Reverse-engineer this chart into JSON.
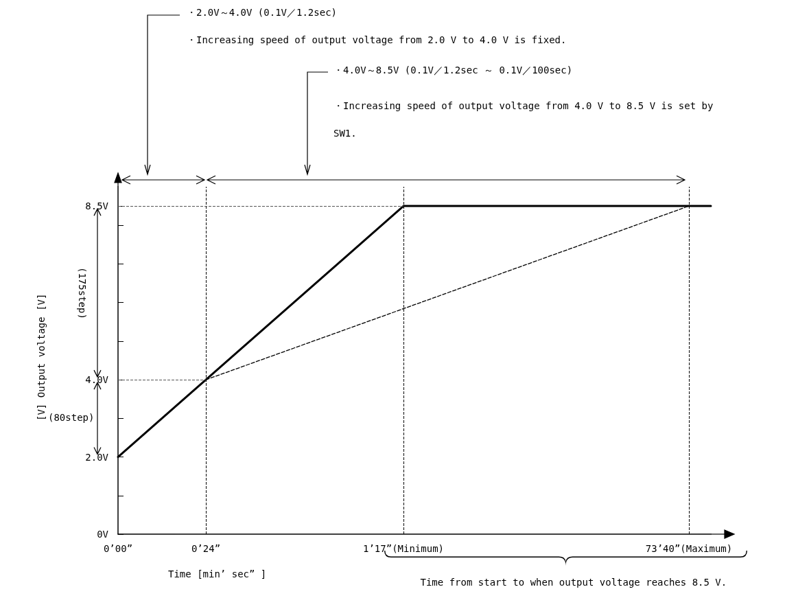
{
  "chart_data": {
    "type": "line",
    "xlabel": "Time [min’ sec” ]",
    "ylabel": "[V] Output voltage [V]",
    "categories": [
      "0’00”",
      null,
      null,
      null,
      "0’24”",
      null,
      null,
      null,
      null,
      null,
      null,
      null,
      null,
      "1’17”(Minimum)",
      null,
      null,
      null,
      null,
      null,
      null,
      null,
      null,
      null,
      null,
      null,
      null,
      "73’40”(Maximum)",
      null
    ],
    "series": [
      {
        "color": "#000000",
        "line_style": "solid",
        "values": [
          2.0,
          null,
          null,
          null,
          4.0,
          null,
          null,
          null,
          null,
          null,
          null,
          null,
          null,
          8.5,
          null,
          null,
          null,
          null,
          null,
          null,
          null,
          null,
          null,
          null,
          null,
          null,
          8.5,
          8.5
        ]
      },
      {
        "color": "#000000",
        "line_style": "dashed",
        "x": [
          "0’24”",
          "73’40”(Maximum)"
        ],
        "values": [
          4.0,
          8.5
        ]
      }
    ],
    "ylim": [
      0,
      9
    ],
    "yticks": [
      {
        "value": 0,
        "label": "0V"
      },
      {
        "value": 1,
        "label": null
      },
      {
        "value": 2,
        "label": "2.0V"
      },
      {
        "value": 3,
        "label": null
      },
      {
        "value": 4,
        "label": "4.0V"
      },
      {
        "value": 5,
        "label": null
      },
      {
        "value": 6,
        "label": null
      },
      {
        "value": 7,
        "label": null
      },
      {
        "value": 8,
        "label": null
      },
      {
        "value": 8.5,
        "label": "8.5V"
      }
    ],
    "ref_lines": [
      {
        "axis": "x",
        "value": "0’24”",
        "line_style": "dashed",
        "color": "#000000"
      },
      {
        "axis": "x",
        "value": "1’17”(Minimum)",
        "line_style": "dashed",
        "color": "#000000"
      },
      {
        "axis": "x",
        "value": "73’40”(Maximum)",
        "line_style": "dashed",
        "color": "#000000"
      },
      {
        "axis": "y",
        "value": 4.0,
        "line_style": "dashed",
        "color": "#555555"
      },
      {
        "axis": "y",
        "value": 8.5,
        "line_style": "dashed",
        "color": "#555555"
      }
    ],
    "annotations": [
      "・2.0V～4.0V (0.1V／1.2sec)",
      "・Increasing speed of output voltage from 2.0 V to 4.0 V is fixed.",
      "・4.0V～8.5V (0.1V／1.2sec ～ 0.1V／100sec)",
      "・Increasing speed of output voltage from 4.0 V to 8.5 V is set by SW1.",
      "(175step)",
      "(80step)",
      "Time from start to when output voltage reaches 8.5 V."
    ],
    "marker": "none",
    "grid": false
  }
}
